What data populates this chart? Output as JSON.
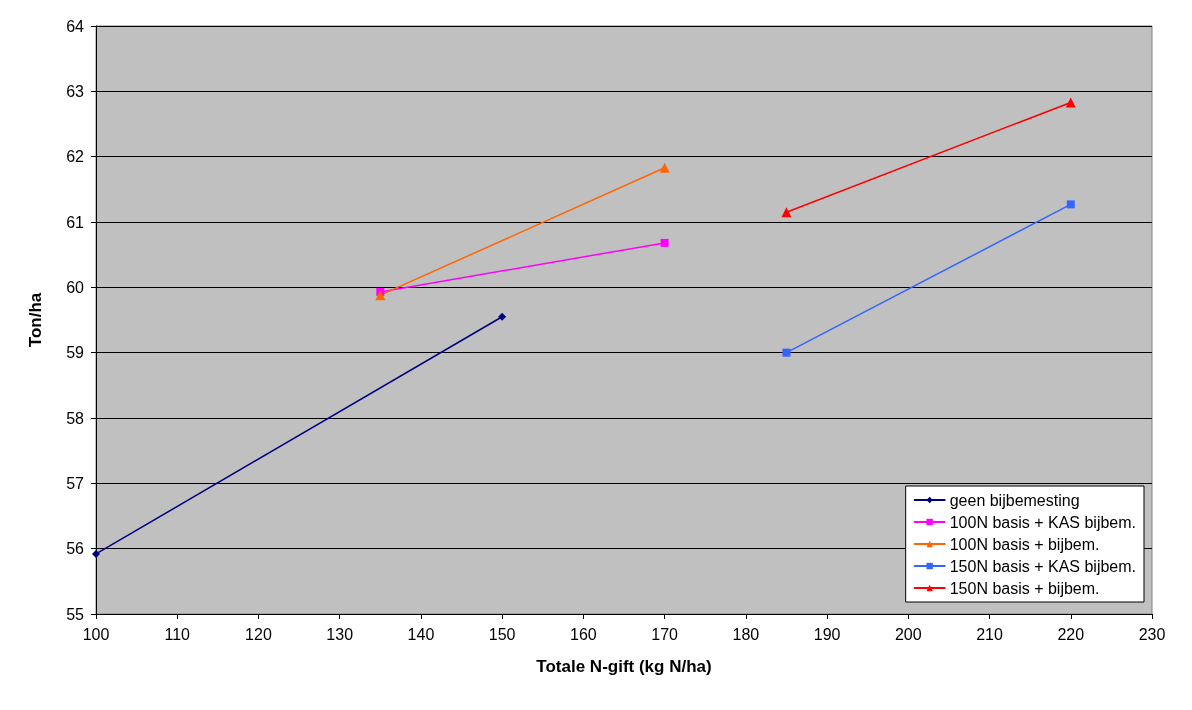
{
  "chart_data": {
    "type": "line",
    "xlabel": "Totale N-gift (kg N/ha)",
    "ylabel": "Ton/ha",
    "xlim": [
      100,
      230
    ],
    "xticks": [
      100,
      110,
      120,
      130,
      140,
      150,
      160,
      170,
      180,
      190,
      200,
      210,
      220,
      230
    ],
    "ylim": [
      55,
      64
    ],
    "yticks": [
      55,
      56,
      57,
      58,
      59,
      60,
      61,
      62,
      63,
      64
    ],
    "grid": "y",
    "legend": "bottom right",
    "line_style": "solid",
    "series": [
      {
        "name": "geen bijbemesting",
        "color": "#000080",
        "marker": "diamond",
        "x": [
          100,
          150
        ],
        "values": [
          55.92,
          59.55
        ]
      },
      {
        "name": "100N basis + KAS bijbem.",
        "color": "#ff00ff",
        "marker": "square",
        "x": [
          135,
          170
        ],
        "values": [
          59.93,
          60.68
        ]
      },
      {
        "name": "100N basis + bijbem.",
        "color": "#ff6600",
        "marker": "triangle",
        "x": [
          135,
          170
        ],
        "values": [
          59.88,
          61.83
        ]
      },
      {
        "name": "150N basis + KAS bijbem.",
        "color": "#3366ff",
        "marker": "square",
        "x": [
          185,
          220
        ],
        "values": [
          59.0,
          61.27
        ]
      },
      {
        "name": "150N basis + bijbem.",
        "color": "#ff0000",
        "marker": "triangle",
        "x": [
          185,
          220
        ],
        "values": [
          61.15,
          62.83
        ]
      }
    ]
  }
}
